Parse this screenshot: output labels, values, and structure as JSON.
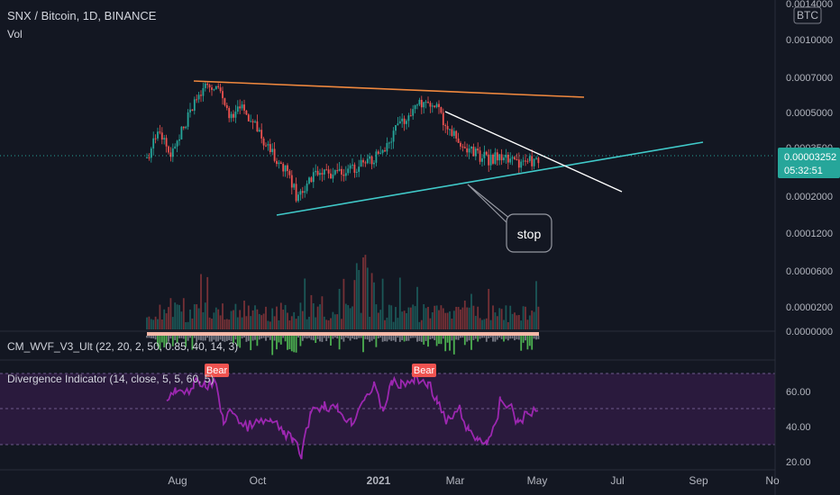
{
  "header": {
    "title": "SNX / Bitcoin, 1D, BINANCE",
    "vol_label": "Vol"
  },
  "price_axis": {
    "currency": "BTC",
    "ticks": [
      "0.0014000",
      "0.0010000",
      "0.0007000",
      "0.0005000",
      "0.0003500",
      "0.0002000",
      "0.0001200",
      "0.0000600",
      "0.0000200",
      "0.0000000"
    ],
    "last_price": "0.00003252",
    "countdown": "05:32:51"
  },
  "indicators": {
    "wvf_label": "CM_WVF_V3_Ult (22, 20, 2, 50, 0.85, 40, 14, 3)",
    "div_label": "Divergence Indicator (14, close, 5, 5, 60, 5)",
    "div_ticks": [
      "60.00",
      "40.00",
      "20.00"
    ],
    "bear_label": "Bear"
  },
  "annotation": {
    "stop_label": "stop"
  },
  "time_axis": {
    "ticks": [
      "Aug",
      "Oct",
      "2021",
      "Mar",
      "May",
      "Jul",
      "Sep",
      "No"
    ]
  },
  "colors": {
    "bg": "#131722",
    "up": "#26a69a",
    "down": "#ef5350",
    "resistance": "#f0883e",
    "support": "#40c9c9",
    "trend": "#ffffff",
    "rsi": "#9c27b0",
    "rsi_band": "#2a1a3d",
    "bear": "#ef5350",
    "price_tag": "#26a69a"
  }
}
